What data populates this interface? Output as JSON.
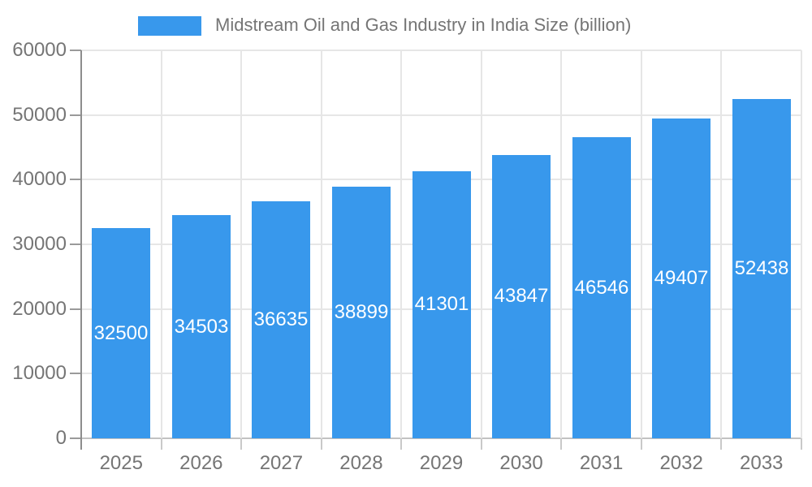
{
  "chart_data": {
    "type": "bar",
    "title": "Midstream Oil and Gas Industry in India Size (billion)",
    "categories": [
      "2025",
      "2026",
      "2027",
      "2028",
      "2029",
      "2030",
      "2031",
      "2032",
      "2033"
    ],
    "values": [
      32500,
      34503,
      36635,
      38899,
      41301,
      43847,
      46546,
      49407,
      52438
    ],
    "series": [
      {
        "name": "Midstream Oil and Gas Industry in India Size (billion)",
        "values": [
          32500,
          34503,
          36635,
          38899,
          41301,
          43847,
          46546,
          49407,
          52438
        ]
      }
    ],
    "xlabel": "",
    "ylabel": "",
    "ylim": [
      0,
      60000
    ],
    "yticks": [
      0,
      10000,
      20000,
      30000,
      40000,
      50000,
      60000
    ],
    "grid": true,
    "legend_position": "top",
    "bar_labels_inside": true
  },
  "legend": {
    "label": "Midstream Oil and Gas Industry in India Size (billion)"
  },
  "colors": {
    "bar": "#3898ec",
    "bar_label": "#ffffff",
    "axis_text": "#757575",
    "gridline": "#e6e6e6",
    "axis_line": "#8d8d8d"
  }
}
